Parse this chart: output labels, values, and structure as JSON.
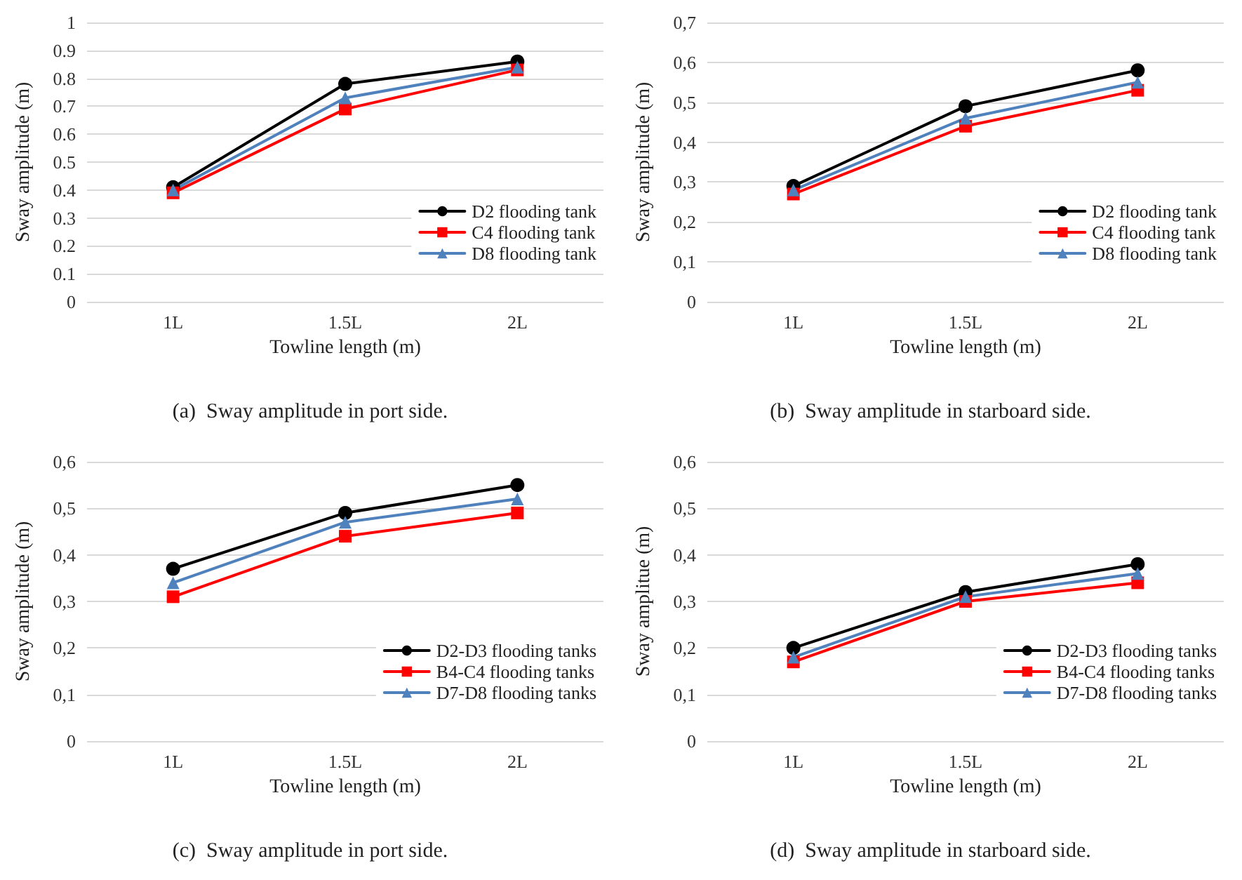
{
  "chart_data": [
    {
      "type": "line",
      "title": "(a)  Sway amplitude in port side.",
      "xlabel": "Towline length (m)",
      "ylabel": "Sway amplitude (m)",
      "categories": [
        "1L",
        "1.5L",
        "2L"
      ],
      "series": [
        {
          "name": "D2 flooding tank",
          "color": "#000000",
          "marker": "circle",
          "values": [
            0.41,
            0.78,
            0.86
          ]
        },
        {
          "name": "C4 flooding tank",
          "color": "#ff0000",
          "marker": "square",
          "values": [
            0.39,
            0.69,
            0.83
          ]
        },
        {
          "name": "D8 flooding tank",
          "color": "#4f81bd",
          "marker": "triangle",
          "values": [
            0.4,
            0.73,
            0.84
          ]
        }
      ],
      "ylim": [
        0,
        1
      ],
      "yticks": [
        0,
        0.1,
        0.2,
        0.3,
        0.4,
        0.5,
        0.6,
        0.7,
        0.8,
        0.9,
        1
      ],
      "grid": "y",
      "legend": "bottom right",
      "line_style": "solid"
    },
    {
      "type": "line",
      "title": "(b)  Sway amplitude in starboard side.",
      "xlabel": "Towline length (m)",
      "ylabel": "Sway amplitude (m)",
      "categories": [
        "1L",
        "1.5L",
        "2L"
      ],
      "series": [
        {
          "name": "D2 flooding tank",
          "color": "#000000",
          "marker": "circle",
          "values": [
            0.29,
            0.49,
            0.58
          ]
        },
        {
          "name": "C4 flooding tank",
          "color": "#ff0000",
          "marker": "square",
          "values": [
            0.27,
            0.44,
            0.53
          ]
        },
        {
          "name": "D8 flooding tank",
          "color": "#4f81bd",
          "marker": "triangle",
          "values": [
            0.28,
            0.46,
            0.55
          ]
        }
      ],
      "ylim": [
        0,
        0.7
      ],
      "yticks": [
        0,
        {
          "value": 0.1,
          "label": "0,1"
        },
        {
          "value": 0.2,
          "label": "0,2"
        },
        {
          "value": 0.3,
          "label": "0,3"
        },
        {
          "value": 0.4,
          "label": "0,4"
        },
        {
          "value": 0.5,
          "label": "0,5"
        },
        {
          "value": 0.6,
          "label": "0,6"
        },
        {
          "value": 0.7,
          "label": "0,7"
        }
      ],
      "grid": "y",
      "legend": "bottom right",
      "line_style": "solid"
    },
    {
      "type": "line",
      "title": "(c)  Sway amplitude in port side.",
      "xlabel": "Towline length (m)",
      "ylabel": "Sway amplitude (m)",
      "categories": [
        "1L",
        "1.5L",
        "2L"
      ],
      "series": [
        {
          "name": "D2-D3 flooding tanks",
          "color": "#000000",
          "marker": "circle",
          "values": [
            0.37,
            0.49,
            0.55
          ]
        },
        {
          "name": "B4-C4 flooding tanks",
          "color": "#ff0000",
          "marker": "square",
          "values": [
            0.31,
            0.44,
            0.49
          ]
        },
        {
          "name": "D7-D8 flooding tanks",
          "color": "#4f81bd",
          "marker": "triangle",
          "values": [
            0.34,
            0.47,
            0.52
          ]
        }
      ],
      "ylim": [
        0,
        0.6
      ],
      "yticks": [
        0,
        {
          "value": 0.1,
          "label": "0,1"
        },
        {
          "value": 0.2,
          "label": "0,2"
        },
        {
          "value": 0.3,
          "label": "0,3"
        },
        {
          "value": 0.4,
          "label": "0,4"
        },
        {
          "value": 0.5,
          "label": "0,5"
        },
        {
          "value": 0.6,
          "label": "0,6"
        }
      ],
      "grid": "y",
      "legend": "bottom right",
      "line_style": "solid"
    },
    {
      "type": "line",
      "title": "(d)  Sway amplitude in starboard side.",
      "xlabel": "Towline length (m)",
      "ylabel": "Sway amplitue (m)",
      "categories": [
        "1L",
        "1.5L",
        "2L"
      ],
      "series": [
        {
          "name": "D2-D3 flooding tanks",
          "color": "#000000",
          "marker": "circle",
          "values": [
            0.2,
            0.32,
            0.38
          ]
        },
        {
          "name": "B4-C4 flooding tanks",
          "color": "#ff0000",
          "marker": "square",
          "values": [
            0.17,
            0.3,
            0.34
          ]
        },
        {
          "name": "D7-D8 flooding tanks",
          "color": "#4f81bd",
          "marker": "triangle",
          "values": [
            0.18,
            0.31,
            0.36
          ]
        }
      ],
      "ylim": [
        0,
        0.6
      ],
      "yticks": [
        0,
        {
          "value": 0.1,
          "label": "0,1"
        },
        {
          "value": 0.2,
          "label": "0,2"
        },
        {
          "value": 0.3,
          "label": "0,3"
        },
        {
          "value": 0.4,
          "label": "0,4"
        },
        {
          "value": 0.5,
          "label": "0,5"
        },
        {
          "value": 0.6,
          "label": "0,6"
        }
      ],
      "grid": "y",
      "legend": "bottom right",
      "line_style": "solid"
    }
  ]
}
